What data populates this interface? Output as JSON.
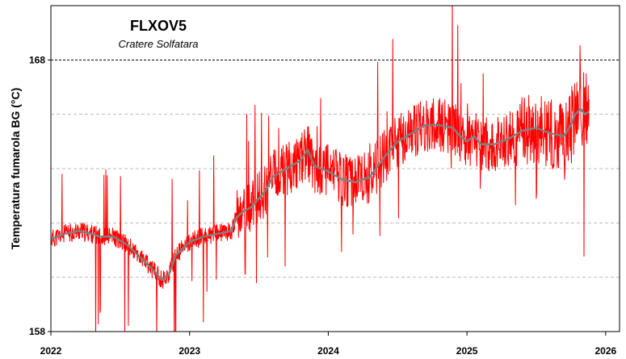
{
  "chart_data": {
    "type": "line",
    "title": "FLXOV5",
    "subtitle": "Cratere Solfatara",
    "ylabel": "Temperatura fumarola BG (°C)",
    "xlabel": "",
    "xlim": [
      2022.0,
      2026.1
    ],
    "ylim": [
      158,
      170
    ],
    "x_ticks": [
      2022,
      2023,
      2024,
      2025,
      2026
    ],
    "x_tick_labels": [
      "2022",
      "2023",
      "2024",
      "2025",
      "2026"
    ],
    "y_tick_labels": [
      {
        "value": 158,
        "label": "158"
      },
      {
        "value": 168,
        "label": "168"
      }
    ],
    "y_gridlines": [
      160,
      162,
      164,
      166
    ],
    "reference_line": {
      "value": 168,
      "style": "dotted"
    },
    "grid": true,
    "colors": {
      "raw": "#ff0000",
      "smoothed": "#7f7f7f",
      "grid": "#bbbbbb"
    },
    "series": [
      {
        "x": [
          2022.0,
          2022.1,
          2022.2,
          2022.3,
          2022.35,
          2022.45,
          2022.55,
          2022.65,
          2022.75,
          2022.8,
          2022.85,
          2022.9,
          2023.0,
          2023.1,
          2023.2,
          2023.3,
          2023.34,
          2023.38,
          2023.45,
          2023.55,
          2023.6,
          2023.7,
          2023.8,
          2023.85,
          2023.9,
          2024.0,
          2024.1,
          2024.2,
          2024.3,
          2024.4,
          2024.5,
          2024.6,
          2024.7,
          2024.8,
          2024.9,
          2024.95,
          2025.0,
          2025.05,
          2025.1,
          2025.2,
          2025.3,
          2025.4,
          2025.5,
          2025.6,
          2025.7,
          2025.75,
          2025.78,
          2025.82,
          2025.85,
          2025.88
        ],
        "y": [
          161.4,
          161.6,
          161.7,
          161.6,
          161.5,
          161.5,
          161.2,
          160.7,
          160.2,
          159.9,
          160.1,
          160.8,
          161.3,
          161.5,
          161.6,
          161.7,
          162.2,
          162.4,
          162.6,
          163.2,
          163.7,
          164.0,
          164.3,
          164.7,
          164.1,
          163.9,
          163.6,
          163.5,
          163.7,
          164.4,
          165.0,
          165.3,
          165.6,
          165.6,
          165.5,
          165.2,
          165.0,
          165.2,
          164.9,
          164.9,
          165.1,
          165.4,
          165.5,
          165.3,
          165.2,
          165.6,
          166.0,
          166.2,
          166.0,
          166.1
        ]
      }
    ]
  }
}
